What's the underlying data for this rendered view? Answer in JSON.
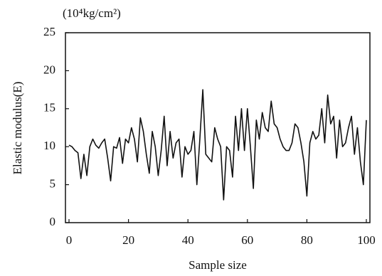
{
  "chart_data": {
    "type": "line",
    "unit_label": "(10⁴kg/cm²)",
    "x_label": "Sample size",
    "y_label": "Elastic modulus(E)",
    "x": [
      0,
      1,
      2,
      3,
      4,
      5,
      6,
      7,
      8,
      9,
      10,
      11,
      12,
      13,
      14,
      15,
      16,
      17,
      18,
      19,
      20,
      21,
      22,
      23,
      24,
      25,
      26,
      27,
      28,
      29,
      30,
      31,
      32,
      33,
      34,
      35,
      36,
      37,
      38,
      39,
      40,
      41,
      42,
      43,
      44,
      45,
      46,
      47,
      48,
      49,
      50,
      51,
      52,
      53,
      54,
      55,
      56,
      57,
      58,
      59,
      60,
      61,
      62,
      63,
      64,
      65,
      66,
      67,
      68,
      69,
      70,
      71,
      72,
      73,
      74,
      75,
      76,
      77,
      78,
      79,
      80,
      81,
      82,
      83,
      84,
      85,
      86,
      87,
      88,
      89,
      90,
      91,
      92,
      93,
      94,
      95,
      96,
      97,
      98,
      99,
      100
    ],
    "series": [
      {
        "color": "#111111",
        "values": [
          10.2,
          10,
          9.5,
          9.2,
          5.8,
          9,
          6.2,
          10,
          11,
          10.2,
          9.8,
          10.5,
          11,
          8.5,
          5.5,
          10,
          9.8,
          11.2,
          7.8,
          11,
          10.5,
          12.5,
          11,
          8,
          13.8,
          12,
          9,
          6.5,
          12,
          10,
          6.2,
          9.5,
          14,
          7.5,
          12,
          8.5,
          10.5,
          11,
          6,
          10,
          9,
          9.5,
          12,
          5,
          11,
          17.5,
          9,
          8.5,
          8,
          12.5,
          11,
          10,
          3,
          10,
          9.5,
          6,
          14,
          9.5,
          15,
          9.5,
          15,
          10,
          4.5,
          13.5,
          11,
          14.5,
          12.5,
          12,
          16,
          13,
          12.5,
          11,
          10,
          9.5,
          9.5,
          10.5,
          13,
          12.5,
          10.5,
          8,
          3.5,
          10.5,
          12,
          11,
          11.5,
          15,
          10.5,
          16.8,
          13,
          14,
          8.5,
          13.5,
          10,
          10.5,
          12.5,
          14,
          9,
          12.5,
          8,
          5,
          13.5
        ]
      }
    ],
    "xlim": [
      -1.2,
      101.2
    ],
    "ylim": [
      0,
      25
    ],
    "xticks": [
      0,
      20,
      40,
      60,
      80,
      100
    ],
    "yticks": [
      0,
      5,
      10,
      15,
      20,
      25
    ]
  }
}
